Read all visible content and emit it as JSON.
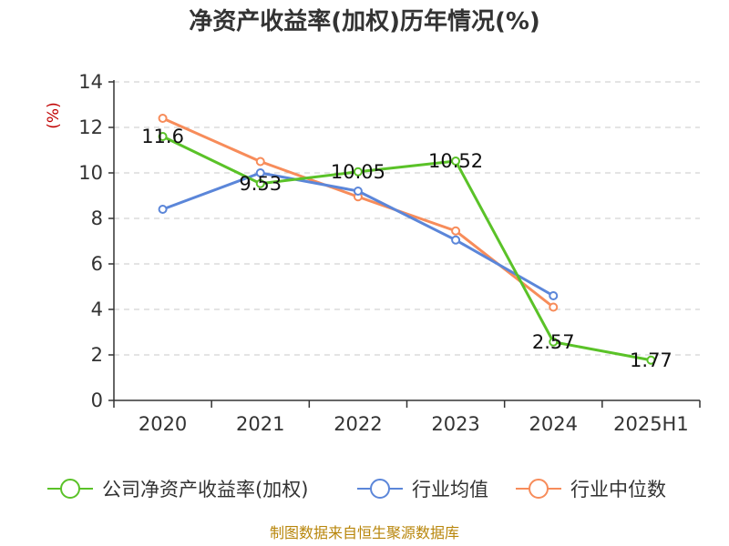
{
  "chart_data": {
    "type": "line",
    "title": "净资产收益率(加权)历年情况(%)",
    "ylabel": "(%)",
    "categories": [
      "2020",
      "2021",
      "2022",
      "2023",
      "2024",
      "2025H1"
    ],
    "ylim": [
      0,
      14
    ],
    "yticks": [
      0,
      2,
      4,
      6,
      8,
      10,
      12,
      14
    ],
    "grid": true,
    "legend_position": "bottom",
    "series": [
      {
        "name": "公司净资产收益率(加权)",
        "color": "#5ac228",
        "values": [
          11.6,
          9.53,
          10.05,
          10.52,
          2.57,
          1.77
        ],
        "labels": [
          "11.6",
          "9.53",
          "10.05",
          "10.52",
          "2.57",
          "1.77"
        ]
      },
      {
        "name": "行业均值",
        "color": "#5b86d9",
        "values": [
          8.4,
          10.0,
          9.2,
          7.05,
          4.6,
          null
        ]
      },
      {
        "name": "行业中位数",
        "color": "#f78c5a",
        "values": [
          12.4,
          10.5,
          8.95,
          7.45,
          4.1,
          null
        ]
      }
    ],
    "source": "制图数据来自恒生聚源数据库"
  }
}
